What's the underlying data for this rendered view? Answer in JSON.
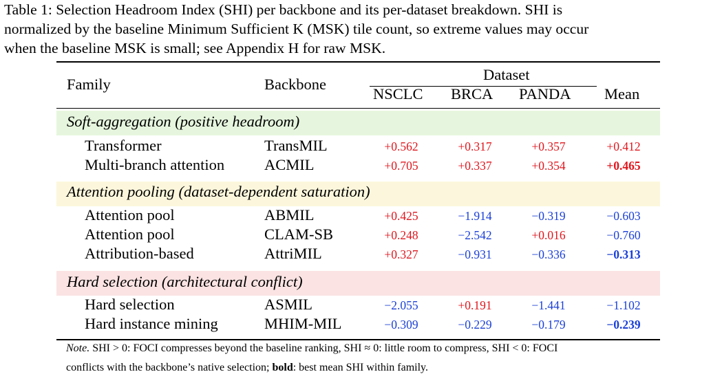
{
  "caption": {
    "line1": "Table 1: Selection Headroom Index (SHI) per backbone and its per-dataset breakdown. SHI is",
    "line2": "normalized by the baseline Minimum Sufficient K (MSK) tile count, so extreme values may occur",
    "line3": "when the baseline MSK is small; see Appendix H for raw MSK."
  },
  "header": {
    "family": "Family",
    "backbone": "Backbone",
    "dataset": "Dataset",
    "cols": [
      "NSCLC",
      "BRCA",
      "PANDA",
      "Mean"
    ]
  },
  "colors": {
    "positive": "#e0151c",
    "negative": "#1a3fd6",
    "band_soft": "#e6f6de",
    "band_attn": "#fcf7dc",
    "band_hard": "#fbe3e3"
  },
  "groups": [
    {
      "label": "Soft-aggregation (positive headroom)",
      "rows": [
        {
          "family": "Transformer",
          "backbone": "TransMIL",
          "values": [
            "+0.562",
            "+0.317",
            "+0.357",
            "+0.412"
          ],
          "signs": [
            "pos",
            "pos",
            "pos",
            "pos"
          ],
          "bold_mean": false
        },
        {
          "family": "Multi-branch attention",
          "backbone": "ACMIL",
          "values": [
            "+0.705",
            "+0.337",
            "+0.354",
            "+0.465"
          ],
          "signs": [
            "pos",
            "pos",
            "pos",
            "pos"
          ],
          "bold_mean": true
        }
      ]
    },
    {
      "label": "Attention pooling (dataset-dependent saturation)",
      "rows": [
        {
          "family": "Attention pool",
          "backbone": "ABMIL",
          "values": [
            "+0.425",
            "−1.914",
            "−0.319",
            "−0.603"
          ],
          "signs": [
            "pos",
            "neg",
            "neg",
            "neg"
          ],
          "bold_mean": false
        },
        {
          "family": "Attention pool",
          "backbone": "CLAM-SB",
          "values": [
            "+0.248",
            "−2.542",
            "+0.016",
            "−0.760"
          ],
          "signs": [
            "pos",
            "neg",
            "pos",
            "neg"
          ],
          "bold_mean": false
        },
        {
          "family": "Attribution-based",
          "backbone": "AttriMIL",
          "values": [
            "+0.327",
            "−0.931",
            "−0.336",
            "−0.313"
          ],
          "signs": [
            "pos",
            "neg",
            "neg",
            "neg"
          ],
          "bold_mean": true
        }
      ]
    },
    {
      "label": "Hard selection (architectural conflict)",
      "rows": [
        {
          "family": "Hard selection",
          "backbone": "ASMIL",
          "values": [
            "−2.055",
            "+0.191",
            "−1.441",
            "−1.102"
          ],
          "signs": [
            "neg",
            "pos",
            "neg",
            "neg"
          ],
          "bold_mean": false
        },
        {
          "family": "Hard instance mining",
          "backbone": "MHIM-MIL",
          "values": [
            "−0.309",
            "−0.229",
            "−0.179",
            "−0.239"
          ],
          "signs": [
            "neg",
            "neg",
            "neg",
            "neg"
          ],
          "bold_mean": true
        }
      ]
    }
  ],
  "note": {
    "label": "Note.",
    "line1_rest": "SHI > 0: FOCI compresses beyond the baseline ranking, SHI ≈ 0: little room to compress, SHI < 0: FOCI",
    "line2_bold": "bold",
    "line2_rest": ": best mean SHI within family.",
    "line2_prefix": "conflicts with the backbone’s native selection; "
  }
}
